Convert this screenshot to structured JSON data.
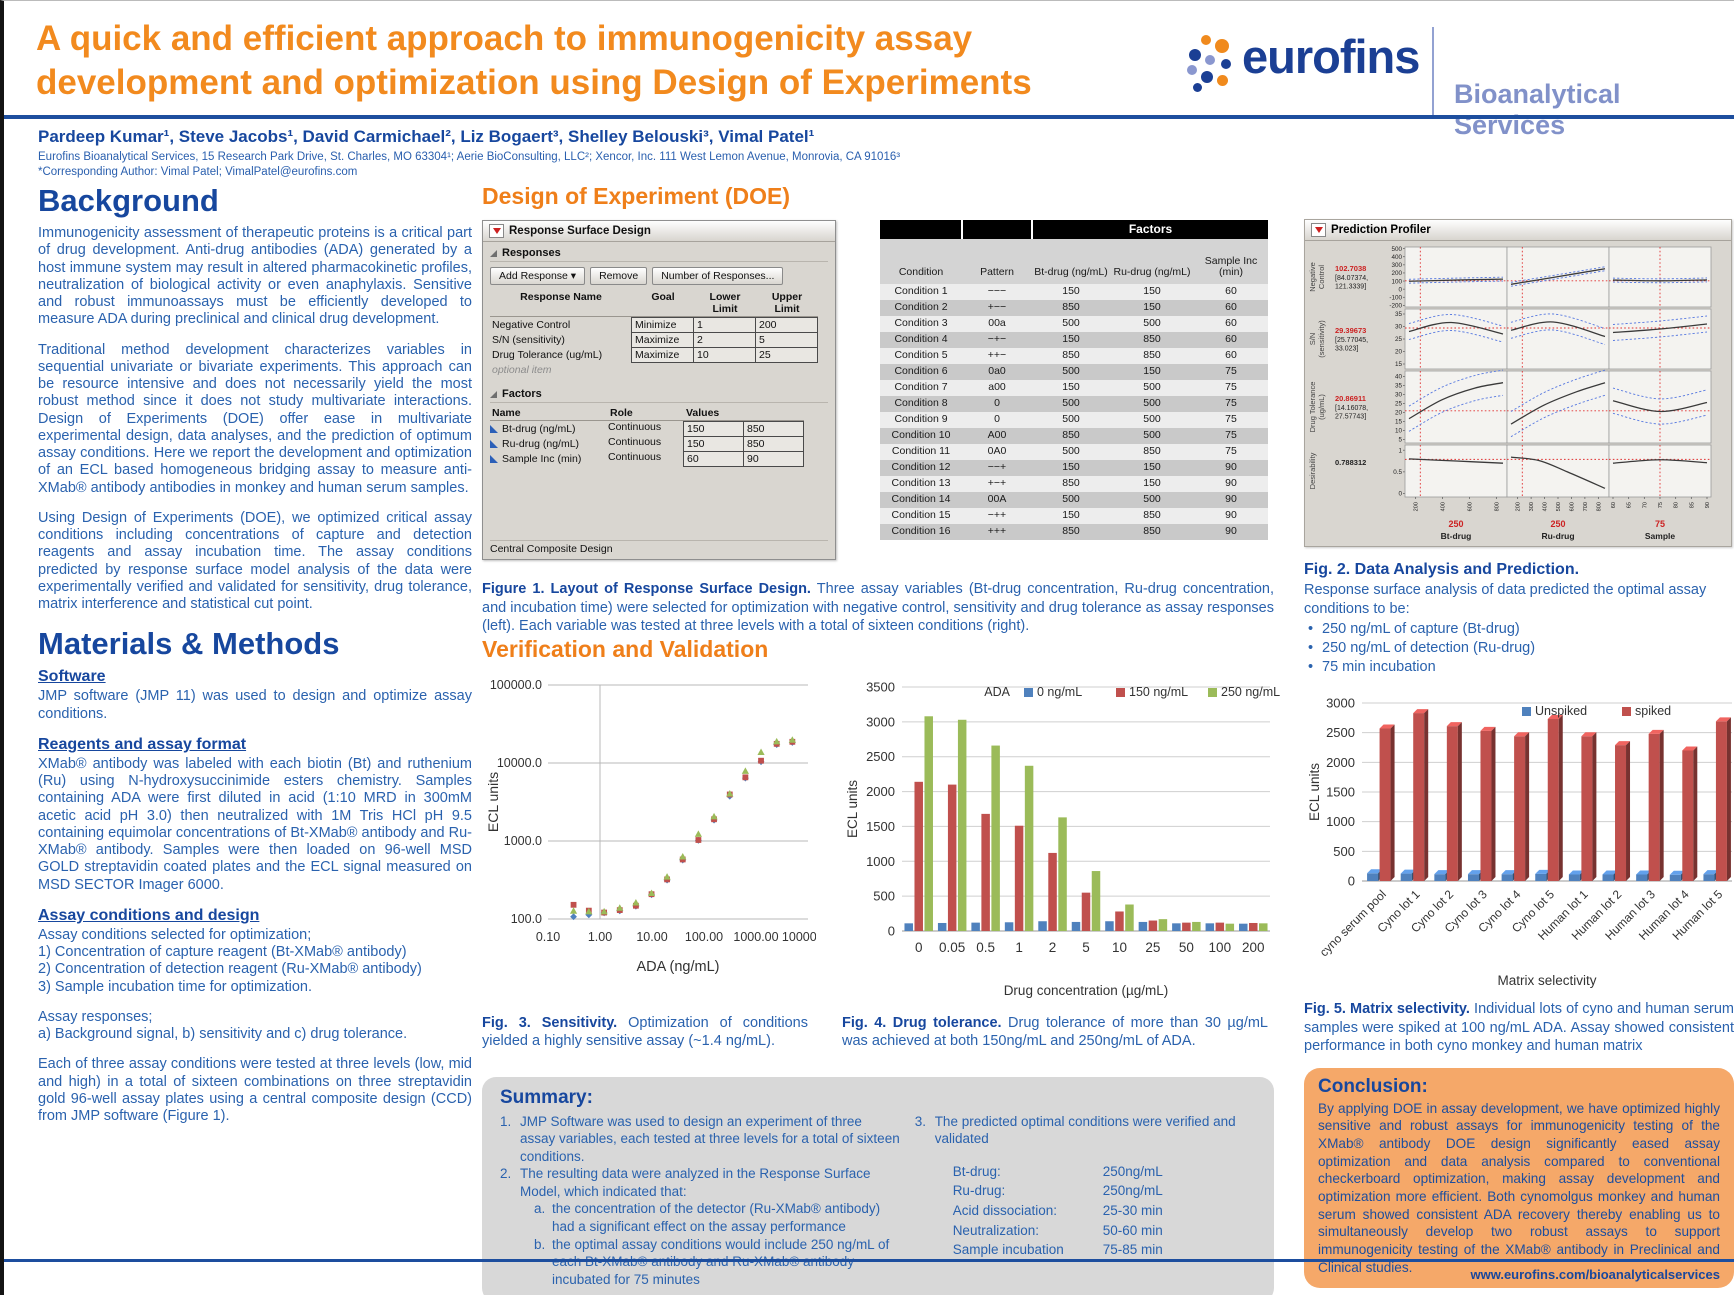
{
  "header": {
    "title": "A quick and efficient approach to immunogenicity assay\ndevelopment  and optimization using Design of Experiments",
    "brand": "eurofins",
    "brand_sub": "Bioanalytical Services"
  },
  "authors": {
    "names": "Pardeep Kumar¹, Steve Jacobs¹, David Carmichael², Liz Bogaert³, Shelley Belouski³, Vimal Patel¹",
    "affiliation": "Eurofins Bioanalytical Services, 15 Research Park Drive, St. Charles, MO 63304¹; Aerie BioConsulting, LLC²; Xencor, Inc. 111 West Lemon Avenue, Monrovia, CA 91016³",
    "corresponding": "*Corresponding Author: Vimal Patel; VimalPatel@eurofins.com"
  },
  "sections": {
    "background": "Background",
    "methods": "Materials & Methods",
    "doe": "Design of Experiment (DOE)",
    "verification": "Verification and Validation"
  },
  "background": {
    "p1": "Immunogenicity assessment of therapeutic proteins is a critical part of drug development. Anti-drug antibodies (ADA) generated by a host immune system may result in altered pharmacokinetic profiles, neutralization of biological activity or even anaphylaxis. Sensitive and robust immunoassays must be efficiently developed to measure ADA during preclinical and clinical drug development.",
    "p2": "Traditional method development characterizes variables in sequential univariate or bivariate experiments. This approach can be resource intensive and does not necessarily yield the most robust method since it does not study multivariate interactions. Design of Experiments (DOE) offer ease in multivariate experimental design, data analyses, and the prediction of optimum assay conditions. Here we report the development and optimization of an ECL based homogeneous bridging assay to measure anti-XMab® antibody antibodies in monkey and human serum samples.",
    "p3": "Using Design of Experiments (DOE), we optimized critical assay conditions including concentrations of capture and detection reagents and assay incubation time. The assay conditions predicted by response surface model analysis of the data were experimentally verified and validated for sensitivity, drug tolerance, matrix interference and statistical cut point."
  },
  "methods": {
    "software_h": "Software",
    "software_p": "JMP software (JMP 11) was used to design and optimize assay conditions.",
    "reagents_h": "Reagents and assay format",
    "reagents_p": "XMab® antibody was labeled with each biotin (Bt) and ruthenium (Ru) using N-hydroxysuccinimide esters chemistry. Samples containing ADA were first diluted in acid (1:10 MRD in 300mM acetic acid pH 3.0) then neutralized with 1M Tris HCl pH 9.5 containing equimolar concentrations of Bt-XMab® antibody and Ru-XMab® antibody.  Samples were then loaded on 96-well MSD GOLD streptavidin coated plates and the ECL signal measured on MSD SECTOR Imager 6000.",
    "design_h": "Assay conditions and design",
    "design_lines": "Assay conditions selected for optimization;\n1) Concentration of capture reagent (Bt-XMab® antibody)\n2) Concentration of detection reagent (Ru-XMab® antibody)\n3) Sample incubation time for optimization.",
    "responses_lines": "Assay responses;\na) Background signal, b) sensitivity and c) drug tolerance.",
    "final_p": "Each of three assay conditions were tested at three levels (low, mid and high) in a total of sixteen combinations on three streptavidin gold 96-well assay plates using a central composite design (CCD) from JMP software (Figure 1)."
  },
  "doe": {
    "panel_title": "Response Surface Design",
    "responses_title": "Responses",
    "buttons": [
      "Add Response ▾",
      "Remove",
      "Number of Responses..."
    ],
    "response_headers": [
      "Response Name",
      "Goal",
      "Lower Limit",
      "Upper Limit"
    ],
    "response_rows": [
      {
        "name": "Negative Control",
        "goal": "Minimize",
        "lo": "1",
        "hi": "200"
      },
      {
        "name": "S/N (sensitivity)",
        "goal": "Maximize",
        "lo": "2",
        "hi": "5"
      },
      {
        "name": "Drug Tolerance (ug/mL)",
        "goal": "Maximize",
        "lo": "10",
        "hi": "25"
      }
    ],
    "optional_item": "optional item",
    "factors_title": "Factors",
    "factor_headers": [
      "Name",
      "Role",
      "Values"
    ],
    "factor_rows": [
      {
        "name": "Bt-drug (ng/mL)",
        "role": "Continuous",
        "v1": "150",
        "v2": "850"
      },
      {
        "name": "Ru-drug (ng/mL)",
        "role": "Continuous",
        "v1": "150",
        "v2": "850"
      },
      {
        "name": "Sample Inc (min)",
        "role": "Continuous",
        "v1": "60",
        "v2": "90"
      }
    ],
    "footer": "Central Composite Design"
  },
  "conditions": {
    "factors_header": "Factors",
    "headers": [
      "Condition",
      "Pattern",
      "Bt-drug (ng/mL)",
      "Ru-drug (ng/mL)",
      "Sample Inc (min)"
    ],
    "rows": [
      [
        "Condition 1",
        "−−−",
        "150",
        "150",
        "60"
      ],
      [
        "Condition 2",
        "+−−",
        "850",
        "150",
        "60"
      ],
      [
        "Condition 3",
        "00a",
        "500",
        "500",
        "60"
      ],
      [
        "Condition 4",
        "−+−",
        "150",
        "850",
        "60"
      ],
      [
        "Condition 5",
        "++−",
        "850",
        "850",
        "60"
      ],
      [
        "Condition 6",
        "0a0",
        "500",
        "150",
        "75"
      ],
      [
        "Condition 7",
        "a00",
        "150",
        "500",
        "75"
      ],
      [
        "Condition 8",
        "0",
        "500",
        "500",
        "75"
      ],
      [
        "Condition 9",
        "0",
        "500",
        "500",
        "75"
      ],
      [
        "Condition 10",
        "A00",
        "850",
        "500",
        "75"
      ],
      [
        "Condition 11",
        "0A0",
        "500",
        "850",
        "75"
      ],
      [
        "Condition 12",
        "−−+",
        "150",
        "150",
        "90"
      ],
      [
        "Condition 13",
        "+−+",
        "850",
        "150",
        "90"
      ],
      [
        "Condition 14",
        "00A",
        "500",
        "500",
        "90"
      ],
      [
        "Condition 15",
        "−++",
        "150",
        "850",
        "90"
      ],
      [
        "Condition 16",
        "+++",
        "850",
        "850",
        "90"
      ]
    ]
  },
  "figures": {
    "fig1_bold": "Figure 1. Layout of Response Surface Design.",
    "fig1_text": " Three assay variables (Bt-drug concentration, Ru-drug concentration, and incubation time) were selected for optimization with negative control, sensitivity and drug tolerance as assay responses (left). Each variable was tested at three levels with a total of sixteen conditions (right).",
    "fig2_bold": "Fig. 2. Data Analysis and Prediction.",
    "fig2_text": "Response surface analysis of data predicted the optimal assay conditions to be:",
    "fig2_bullets": [
      "250 ng/mL of capture (Bt-drug)",
      "250 ng/mL of detection (Ru-drug)",
      "75 min incubation"
    ],
    "fig3_bold": "Fig. 3. Sensitivity.",
    "fig3_text": " Optimization of conditions  yielded a highly sensitive assay (~1.4 ng/mL).",
    "fig4_bold": "Fig. 4. Drug tolerance.",
    "fig4_text": " Drug tolerance of more than 30 µg/mL was achieved at both 150ng/mL and 250ng/mL of ADA.",
    "fig5_bold": "Fig. 5. Matrix selectivity.",
    "fig5_text": " Individual lots of cyno and human serum samples were spiked at 100 ng/mL ADA. Assay showed consistent performance in both cyno monkey and human matrix"
  },
  "chart_data": [
    {
      "id": "fig3",
      "type": "scatter",
      "xscale": "log",
      "yscale": "log",
      "title": "",
      "xlabel": "ADA (ng/mL)",
      "ylabel": "ECL units",
      "xlim": [
        0.1,
        10000
      ],
      "ylim": [
        100,
        100000
      ],
      "xticks": [
        "0.10",
        "1.00",
        "10.00",
        "100.00",
        "1000.00",
        "10000.00"
      ],
      "yticks": [
        "100.0",
        "1000.0",
        "10000.0",
        "100000.0"
      ],
      "x": [
        0.31,
        0.61,
        1.2,
        2.4,
        4.9,
        9.8,
        19.5,
        39,
        78,
        156,
        313,
        625,
        1250,
        2500,
        5000
      ],
      "series": [
        {
          "marker": "diamond",
          "color": "#4f81bd",
          "values": [
            107,
            113,
            120,
            127,
            146,
            205,
            315,
            570,
            1020,
            1850,
            3750,
            6400,
            10400,
            17200,
            18300
          ]
        },
        {
          "marker": "square",
          "color": "#c0504d",
          "values": [
            152,
            128,
            121,
            130,
            148,
            208,
            322,
            580,
            1030,
            1900,
            3950,
            6550,
            10700,
            17600,
            18700
          ]
        },
        {
          "marker": "triangle",
          "color": "#9bbb59",
          "values": [
            127,
            125,
            125,
            139,
            162,
            215,
            348,
            630,
            1230,
            2060,
            4050,
            7900,
            13800,
            18900,
            19800
          ]
        }
      ]
    },
    {
      "id": "fig4",
      "type": "bar",
      "legend_title": "ADA",
      "xlabel": "Drug concentration (µg/mL)",
      "ylabel": "ECL units",
      "ylim": [
        0,
        3500
      ],
      "ystep": 500,
      "categories": [
        "0",
        "0.05",
        "0.5",
        "1",
        "2",
        "5",
        "10",
        "25",
        "50",
        "100",
        "200"
      ],
      "series": [
        {
          "name": "0 ng/mL",
          "color": "#4f81bd",
          "values": [
            110,
            115,
            120,
            125,
            140,
            130,
            140,
            130,
            110,
            110,
            105
          ]
        },
        {
          "name": "150 ng/mL",
          "color": "#c0504d",
          "values": [
            2140,
            2100,
            1680,
            1510,
            1120,
            550,
            280,
            150,
            120,
            120,
            115
          ]
        },
        {
          "name": "250 ng/mL",
          "color": "#9bbb59",
          "values": [
            3080,
            3030,
            2660,
            2370,
            1630,
            860,
            380,
            170,
            130,
            105,
            110
          ]
        }
      ]
    },
    {
      "id": "fig5",
      "type": "bar3d",
      "xlabel": "Matrix selectivity",
      "ylabel": "ECL units",
      "ylim": [
        0,
        3000
      ],
      "ystep": 500,
      "categories": [
        "cyno serum pool",
        "Cyno lot 1",
        "Cyno lot 2",
        "Cyno lot 3",
        "Cyno lot 4",
        "Cyno lot 5",
        "Human lot 1",
        "Human lot 2",
        "Human lot 3",
        "Human lot 4",
        "Human lot 5"
      ],
      "series": [
        {
          "name": "Unspiked",
          "color": "#4f81bd",
          "values": [
            130,
            125,
            115,
            115,
            115,
            120,
            110,
            110,
            110,
            105,
            115
          ]
        },
        {
          "name": "spiked",
          "color": "#c0504d",
          "values": [
            2570,
            2830,
            2610,
            2530,
            2440,
            2730,
            2440,
            2290,
            2480,
            2200,
            2690
          ]
        }
      ]
    }
  ],
  "profiler": {
    "title": "Prediction Profiler",
    "rows": [
      {
        "label": [
          "Negative",
          "Control"
        ],
        "value": "102.7038",
        "value_color": "red",
        "ci": [
          "[84.07374,",
          "121.3339]"
        ],
        "ymin": -220,
        "ymax": 520,
        "ticks": [
          500,
          400,
          300,
          200,
          100,
          0,
          -100,
          -200
        ],
        "current": 102.7,
        "band": 24,
        "curves": [
          [
            [
              0,
              98
            ],
            [
              0.5,
              112
            ],
            [
              1,
              124
            ]
          ],
          [
            [
              0,
              60
            ],
            [
              0.5,
              155
            ],
            [
              1,
              252
            ]
          ],
          [
            [
              0,
              112
            ],
            [
              0.5,
              103
            ],
            [
              1,
              114
            ]
          ]
        ]
      },
      {
        "label": [
          "S/N",
          "(sensitivity)"
        ],
        "value": "29.39673",
        "value_color": "red",
        "ci": [
          "[25.77045,",
          "33.023]"
        ],
        "ymin": 13,
        "ymax": 37,
        "ticks": [
          35,
          30,
          25,
          20,
          15
        ],
        "current": 29.4,
        "band": 3.2,
        "curves": [
          [
            [
              0,
              28
            ],
            [
              0.45,
              31.6
            ],
            [
              1,
              27
            ]
          ],
          [
            [
              0,
              28.5
            ],
            [
              0.45,
              31.8
            ],
            [
              1,
              26
            ]
          ],
          [
            [
              0,
              27.6
            ],
            [
              0.5,
              29
            ],
            [
              1,
              31
            ]
          ]
        ]
      },
      {
        "label": [
          "Drug Tolerance",
          "(ug/mL)"
        ],
        "value": "20.86911",
        "value_color": "red",
        "ci": [
          "[14.16078,",
          "27.57743]"
        ],
        "ymin": 3,
        "ymax": 43,
        "ticks": [
          40,
          35,
          30,
          25,
          20,
          15,
          10,
          5
        ],
        "current": 20.87,
        "band": 7,
        "curves": [
          [
            [
              0,
              16.5
            ],
            [
              0.35,
              27
            ],
            [
              0.7,
              33.5
            ],
            [
              1,
              36.5
            ]
          ],
          [
            [
              0,
              13.5
            ],
            [
              0.35,
              24
            ],
            [
              0.7,
              31.5
            ],
            [
              1,
              36.5
            ]
          ],
          [
            [
              0,
              26.5
            ],
            [
              0.5,
              20.5
            ],
            [
              1,
              25.5
            ]
          ]
        ]
      },
      {
        "label": [
          "Desirability"
        ],
        "value": "0.788312",
        "value_color": "black",
        "ci": [],
        "ymin": -0.08,
        "ymax": 1.12,
        "ticks": [
          1,
          0.5,
          0
        ],
        "current": 0.788,
        "band": 0,
        "curves": [
          [
            [
              0,
              0.8
            ],
            [
              0.5,
              0.75
            ],
            [
              1,
              0.7
            ]
          ],
          [
            [
              0,
              0.84
            ],
            [
              0.3,
              0.76
            ],
            [
              0.6,
              0.5
            ],
            [
              1,
              0.12
            ]
          ],
          [
            [
              0,
              0.7
            ],
            [
              0.5,
              0.78
            ],
            [
              1,
              0.71
            ]
          ]
        ]
      }
    ],
    "cols": [
      {
        "ticks": [
          "200",
          "400",
          "600",
          "800"
        ],
        "tickPos": [
          0.071,
          0.357,
          0.643,
          0.929
        ],
        "cur": 0.15,
        "curLabel": "250",
        "name": [
          "Bt-drug",
          "(ng/mL)"
        ]
      },
      {
        "ticks": [
          "200",
          "300",
          "400",
          "500",
          "600",
          "700",
          "800"
        ],
        "tickPos": [
          0.071,
          0.214,
          0.357,
          0.5,
          0.643,
          0.786,
          0.929
        ],
        "cur": 0.15,
        "curLabel": "250",
        "name": [
          "Ru-drug",
          "(ng/mL)"
        ]
      },
      {
        "ticks": [
          "60",
          "65",
          "70",
          "75",
          "80",
          "85",
          "90"
        ],
        "tickPos": [
          0,
          0.167,
          0.333,
          0.5,
          0.667,
          0.833,
          1
        ],
        "cur": 0.5,
        "curLabel": "75",
        "name": [
          "Sample",
          "Inc (min)"
        ]
      }
    ]
  },
  "summary": {
    "heading": "Summary:",
    "item1": "JMP Software was used to design an experiment of three assay variables, each tested at three levels for a total of sixteen conditions.",
    "item2": "The resulting data were analyzed in the Response Surface Model, which indicated that:",
    "item2a": "the concentration of the detector (Ru-XMab® antibody) had a significant effect on the assay performance",
    "item2b": "the optimal assay conditions would include 250 ng/mL of each Bt-XMab® antibody and Ru-XMab® antibody incubated for 75 minutes",
    "item3": "The predicted optimal conditions were verified and validated",
    "conditions": [
      [
        "Bt-drug:",
        "250ng/mL"
      ],
      [
        "Ru-drug:",
        "250ng/mL"
      ],
      [
        "Acid dissociation:",
        "25-30 min"
      ],
      [
        "Neutralization:",
        "50-60 min"
      ],
      [
        "Sample incubation",
        "75-85 min"
      ]
    ]
  },
  "conclusion": {
    "heading": "Conclusion:",
    "text": "By applying DOE in assay development, we have optimized highly sensitive and robust assays for immunogenicity testing of the XMab® antibody   DOE design significantly eased assay optimization and data analysis compared to conventional checkerboard optimization, making assay development and optimization more efficient. Both cynomolgus monkey and human serum showed consistent ADA recovery thereby enabling us to simultaneously develop two robust assays to support immunogenicity testing of the XMab® antibody in Preclinical and Clinical studies."
  },
  "footer": {
    "url": "www.eurofins.com/bioanalyticalservices"
  },
  "colors": {
    "accent_orange": "#f28a1e",
    "heading_blue": "#17479e",
    "body_blue": "#2a62ae",
    "brand_blue": "#1b3f94",
    "brand_periwinkle": "#8191c9",
    "bar_blue": "#4f81bd",
    "bar_red": "#c0504d",
    "bar_green": "#9bbb59",
    "conclusion_bg": "#f5a869",
    "summary_bg": "#d8d8d8"
  }
}
